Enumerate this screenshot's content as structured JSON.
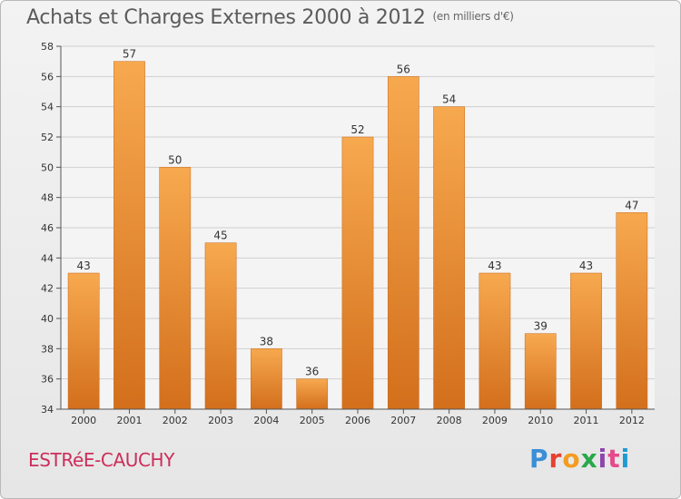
{
  "title": "Achats et Charges Externes 2000 à 2012",
  "subtitle": "(en milliers d'€)",
  "town": "ESTRéE-CAUCHY",
  "logo": {
    "letters": [
      "P",
      "r",
      "o",
      "x",
      "i",
      "t",
      "i"
    ]
  },
  "colors": {
    "bar_light": "#f7a94f",
    "bar_dark": "#d36f1c",
    "town": "#cc2e5b",
    "grid": "#cfcfcf"
  },
  "chart_data": {
    "type": "bar",
    "categories": [
      "2000",
      "2001",
      "2002",
      "2003",
      "2004",
      "2005",
      "2006",
      "2007",
      "2008",
      "2009",
      "2010",
      "2011",
      "2012"
    ],
    "values": [
      43,
      57,
      50,
      45,
      38,
      36,
      52,
      56,
      54,
      43,
      39,
      43,
      47
    ],
    "ylim": [
      34,
      58
    ],
    "yticks": [
      34,
      36,
      38,
      40,
      42,
      44,
      46,
      48,
      50,
      52,
      54,
      56,
      58
    ],
    "grid": true
  }
}
